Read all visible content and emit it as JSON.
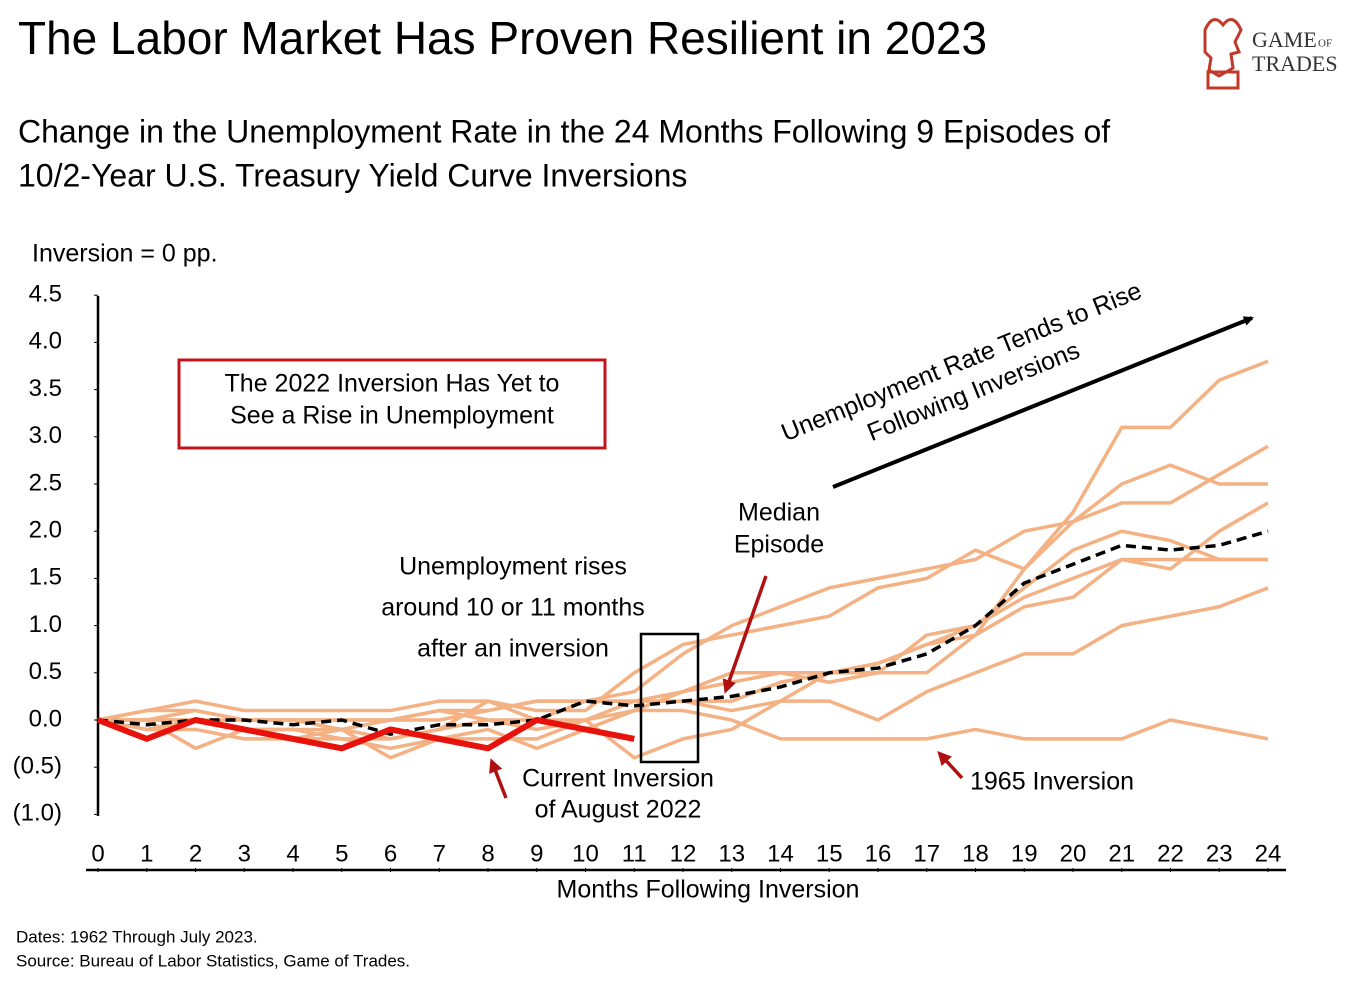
{
  "chart_data": {
    "type": "line",
    "title": "The Labor Market Has Proven Resilient in 2023",
    "subtitle": [
      "Change in the Unemployment Rate in the 24 Months Following 9 Episodes of",
      "10/2-Year U.S. Treasury Yield Curve Inversions"
    ],
    "y_axis_label": "Inversion = 0 pp.",
    "x_axis_label": "Months Following Inversion",
    "logo": [
      "GAME",
      "OF",
      "TRADES"
    ],
    "annotations": {
      "box": [
        "The 2022 Inversion Has Yet to",
        "See a Rise in Unemployment"
      ],
      "rises": [
        "Unemployment rises",
        "around 10 or 11 months",
        "after an inversion"
      ],
      "median": [
        "Median",
        "Episode"
      ],
      "trend": [
        "Unemployment Rate Tends to Rise",
        "Following Inversions"
      ],
      "current": [
        "Current Inversion",
        "of August 2022"
      ],
      "episode_1965": "1965 Inversion"
    },
    "footnotes": [
      "Dates: 1962 Through July 2023.",
      "Source: Bureau of Labor Statistics, Game of Trades."
    ],
    "x": [
      0,
      1,
      2,
      3,
      4,
      5,
      6,
      7,
      8,
      9,
      10,
      11,
      12,
      13,
      14,
      15,
      16,
      17,
      18,
      19,
      20,
      21,
      22,
      23,
      24
    ],
    "xlim": [
      0,
      24
    ],
    "xticks": [
      0,
      1,
      2,
      3,
      4,
      5,
      6,
      7,
      8,
      9,
      10,
      11,
      12,
      13,
      14,
      15,
      16,
      17,
      18,
      19,
      20,
      21,
      22,
      23,
      24
    ],
    "ylim": [
      -1,
      4.5
    ],
    "yticks": [
      {
        "value": -1,
        "label": "(1.0)"
      },
      {
        "value": -0.5,
        "label": "(0.5)"
      },
      {
        "value": 0,
        "label": "0.0"
      },
      0.5,
      {
        "value": 1,
        "label": "1.0"
      },
      1.5,
      {
        "value": 2,
        "label": "2.0"
      },
      2.5,
      {
        "value": 3,
        "label": "3.0"
      },
      3.5,
      {
        "value": 4,
        "label": "4.0"
      },
      4.5
    ],
    "grid": false,
    "series": [
      {
        "color": "#f4b183",
        "values": [
          0,
          0.1,
          0.2,
          0.1,
          0.1,
          0.1,
          0.1,
          0.2,
          0.2,
          0.1,
          0.1,
          0.5,
          0.8,
          0.9,
          1.0,
          1.1,
          1.4,
          1.5,
          1.8,
          1.6,
          2.2,
          3.1,
          3.1,
          3.6,
          3.8
        ]
      },
      {
        "color": "#f4b183",
        "values": [
          0,
          0,
          0,
          0,
          0,
          0,
          0,
          0,
          0.1,
          0.2,
          0.2,
          0.2,
          0.2,
          0.1,
          0.2,
          0.5,
          0.5,
          0.5,
          0.9,
          1.6,
          2.1,
          2.5,
          2.7,
          2.5,
          2.5
        ]
      },
      {
        "color": "#f4b183",
        "values": [
          0,
          0.1,
          0.1,
          0,
          0,
          0,
          0,
          0.1,
          0.1,
          0.2,
          0.2,
          0.3,
          0.7,
          1.0,
          1.2,
          1.4,
          1.5,
          1.6,
          1.7,
          2.0,
          2.1,
          2.3,
          2.3,
          2.6,
          2.9
        ]
      },
      {
        "color": "#f4b183",
        "values": [
          0,
          0,
          -0.3,
          -0.1,
          -0.2,
          -0.1,
          -0.4,
          -0.2,
          -0.1,
          -0.3,
          -0.1,
          0.1,
          0.3,
          0.5,
          0.5,
          0.4,
          0.5,
          0.9,
          1.0,
          1.4,
          1.8,
          2.0,
          1.9,
          1.7,
          1.7
        ]
      },
      {
        "color": "#f4b183",
        "values": [
          0,
          -0.1,
          -0.1,
          -0.2,
          -0.2,
          -0.2,
          -0.2,
          -0.1,
          0,
          0,
          0.2,
          0.2,
          0.2,
          0.2,
          0.4,
          0.5,
          0.6,
          0.8,
          0.9,
          1.2,
          1.3,
          1.7,
          1.6,
          2.0,
          2.3
        ]
      },
      {
        "color": "#f4b183",
        "values": [
          0,
          0,
          0,
          -0.1,
          -0.1,
          -0.2,
          -0.3,
          -0.2,
          -0.2,
          -0.2,
          0,
          -0.4,
          -0.2,
          -0.1,
          0.2,
          0.2,
          0,
          0.3,
          0.5,
          0.7,
          0.7,
          1.0,
          1.1,
          1.2,
          1.4
        ]
      },
      {
        "color": "#f4b183",
        "values": [
          0,
          -0.1,
          0,
          -0.1,
          -0.1,
          -0.1,
          -0.2,
          -0.1,
          0.2,
          0,
          0,
          0.2,
          0.3,
          0.4,
          0.5,
          0.5,
          0.6,
          0.8,
          1.0,
          1.3,
          1.5,
          1.7,
          1.7,
          1.7,
          1.7
        ]
      },
      {
        "color": "#f4b183",
        "values": [
          0,
          0,
          0.1,
          0,
          0,
          -0.1,
          0,
          0.1,
          0,
          -0.1,
          0,
          0.1,
          0.1,
          0,
          -0.2,
          -0.2,
          -0.2,
          -0.2,
          -0.1,
          -0.2,
          -0.2,
          -0.2,
          0,
          -0.1,
          -0.2
        ]
      },
      {
        "color": "#000000",
        "style": "dashed",
        "values": [
          0,
          -0.05,
          0,
          0,
          -0.05,
          0,
          -0.15,
          -0.05,
          -0.05,
          0,
          0.2,
          0.15,
          0.2,
          0.25,
          0.35,
          0.5,
          0.55,
          0.7,
          1.0,
          1.45,
          1.65,
          1.85,
          1.8,
          1.85,
          2.0
        ]
      },
      {
        "color": "#e8120c",
        "style": "bold",
        "values": [
          0,
          -0.2,
          0,
          -0.1,
          -0.2,
          -0.3,
          -0.1,
          -0.2,
          -0.3,
          0,
          -0.1,
          -0.2,
          null,
          null,
          null,
          null,
          null,
          null,
          null,
          null,
          null,
          null,
          null,
          null,
          null
        ]
      }
    ]
  }
}
